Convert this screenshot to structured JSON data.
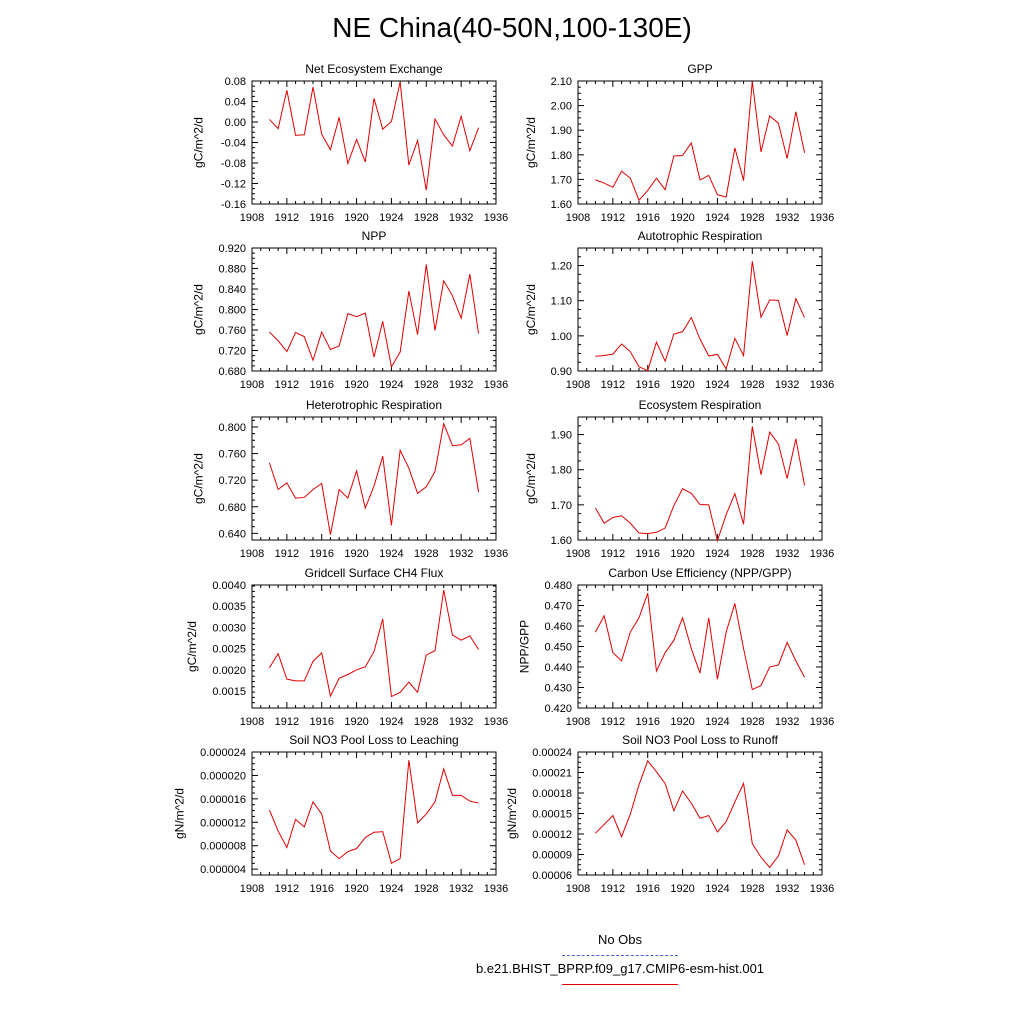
{
  "title": "NE China(40-50N,100-130E)",
  "legend": {
    "obs_label": "No Obs",
    "obs_color": "#4a5ed8",
    "model_label": "b.e21.BHIST_BPRP.f09_g17.CMIP6-esm-hist.001",
    "model_color": "#e00000"
  },
  "chart_data": [
    {
      "type": "line",
      "title": "Net Ecosystem Exchange",
      "ylabel": "gC/m^2/d",
      "xlim": [
        1908,
        1936
      ],
      "xticks": [
        1908,
        1912,
        1916,
        1920,
        1924,
        1928,
        1932,
        1936
      ],
      "ylim": [
        -0.16,
        0.08
      ],
      "yticks": [
        "-0.16",
        "-0.12",
        "-0.08",
        "-0.04",
        "0.00",
        "0.04",
        "0.08"
      ],
      "series": [
        {
          "x": [
            1910,
            1911,
            1912,
            1913,
            1914,
            1915,
            1916,
            1917,
            1918,
            1919,
            1920,
            1921,
            1922,
            1923,
            1924,
            1925,
            1926,
            1927,
            1928,
            1929,
            1930,
            1931,
            1932,
            1933,
            1934
          ],
          "values": [
            0.005,
            -0.013,
            0.062,
            -0.026,
            -0.025,
            0.068,
            -0.024,
            -0.054,
            0.009,
            -0.081,
            -0.034,
            -0.078,
            0.046,
            -0.014,
            0.001,
            0.078,
            -0.084,
            -0.036,
            -0.133,
            0.006,
            -0.025,
            -0.047,
            0.011,
            -0.056,
            -0.011
          ]
        }
      ]
    },
    {
      "type": "line",
      "title": "GPP",
      "ylabel": "gC/m^2/d",
      "xlim": [
        1908,
        1936
      ],
      "xticks": [
        1908,
        1912,
        1916,
        1920,
        1924,
        1928,
        1932,
        1936
      ],
      "ylim": [
        1.6,
        2.1
      ],
      "yticks": [
        "1.60",
        "1.70",
        "1.80",
        "1.90",
        "2.00",
        "2.10"
      ],
      "series": [
        {
          "x": [
            1910,
            1911,
            1912,
            1913,
            1914,
            1915,
            1916,
            1917,
            1918,
            1919,
            1920,
            1921,
            1922,
            1923,
            1924,
            1925,
            1926,
            1927,
            1928,
            1929,
            1930,
            1931,
            1932,
            1933,
            1934
          ],
          "values": [
            1.698,
            1.685,
            1.668,
            1.733,
            1.705,
            1.615,
            1.655,
            1.705,
            1.658,
            1.795,
            1.797,
            1.848,
            1.698,
            1.716,
            1.638,
            1.628,
            1.828,
            1.695,
            2.098,
            1.812,
            1.958,
            1.928,
            1.785,
            1.975,
            1.808
          ]
        }
      ]
    },
    {
      "type": "line",
      "title": "NPP",
      "ylabel": "gC/m^2/d",
      "xlim": [
        1908,
        1936
      ],
      "xticks": [
        1908,
        1912,
        1916,
        1920,
        1924,
        1928,
        1932,
        1936
      ],
      "ylim": [
        0.68,
        0.92
      ],
      "yticks": [
        "0.680",
        "0.720",
        "0.760",
        "0.800",
        "0.840",
        "0.880",
        "0.920"
      ],
      "series": [
        {
          "x": [
            1910,
            1911,
            1912,
            1913,
            1914,
            1915,
            1916,
            1917,
            1918,
            1919,
            1920,
            1921,
            1922,
            1923,
            1924,
            1925,
            1926,
            1927,
            1928,
            1929,
            1930,
            1931,
            1932,
            1933,
            1934
          ],
          "values": [
            0.756,
            0.739,
            0.718,
            0.755,
            0.747,
            0.701,
            0.756,
            0.722,
            0.729,
            0.792,
            0.786,
            0.793,
            0.707,
            0.777,
            0.688,
            0.717,
            0.836,
            0.751,
            0.888,
            0.759,
            0.856,
            0.827,
            0.783,
            0.869,
            0.753
          ]
        }
      ]
    },
    {
      "type": "line",
      "title": "Autotrophic Respiration",
      "ylabel": "gC/m^2/d",
      "xlim": [
        1908,
        1936
      ],
      "xticks": [
        1908,
        1912,
        1916,
        1920,
        1924,
        1928,
        1932,
        1936
      ],
      "ylim": [
        0.9,
        1.25
      ],
      "yticks": [
        "0.90",
        "1.00",
        "1.10",
        "1.20"
      ],
      "series": [
        {
          "x": [
            1910,
            1911,
            1912,
            1913,
            1914,
            1915,
            1916,
            1917,
            1918,
            1919,
            1920,
            1921,
            1922,
            1923,
            1924,
            1925,
            1926,
            1927,
            1928,
            1929,
            1930,
            1931,
            1932,
            1933,
            1934
          ],
          "values": [
            0.942,
            0.944,
            0.948,
            0.977,
            0.955,
            0.912,
            0.901,
            0.982,
            0.928,
            1.005,
            1.012,
            1.052,
            0.991,
            0.943,
            0.947,
            0.906,
            0.993,
            0.944,
            1.212,
            1.053,
            1.102,
            1.101,
            1.001,
            1.106,
            1.052
          ]
        }
      ]
    },
    {
      "type": "line",
      "title": "Heterotrophic Respiration",
      "ylabel": "gC/m^2/d",
      "xlim": [
        1908,
        1936
      ],
      "xticks": [
        1908,
        1912,
        1916,
        1920,
        1924,
        1928,
        1932,
        1936
      ],
      "ylim": [
        0.63,
        0.815
      ],
      "yticks": [
        "0.640",
        "0.680",
        "0.720",
        "0.760",
        "0.800"
      ],
      "series": [
        {
          "x": [
            1910,
            1911,
            1912,
            1913,
            1914,
            1915,
            1916,
            1917,
            1918,
            1919,
            1920,
            1921,
            1922,
            1923,
            1924,
            1925,
            1926,
            1927,
            1928,
            1929,
            1930,
            1931,
            1932,
            1933,
            1934
          ],
          "values": [
            0.746,
            0.706,
            0.716,
            0.693,
            0.694,
            0.706,
            0.715,
            0.638,
            0.706,
            0.693,
            0.734,
            0.678,
            0.711,
            0.756,
            0.652,
            0.765,
            0.738,
            0.7,
            0.71,
            0.733,
            0.805,
            0.772,
            0.773,
            0.783,
            0.702
          ]
        }
      ]
    },
    {
      "type": "line",
      "title": "Ecosystem Respiration",
      "ylabel": "gC/m^2/d",
      "xlim": [
        1908,
        1936
      ],
      "xticks": [
        1908,
        1912,
        1916,
        1920,
        1924,
        1928,
        1932,
        1936
      ],
      "ylim": [
        1.6,
        1.95
      ],
      "yticks": [
        "1.60",
        "1.70",
        "1.80",
        "1.90"
      ],
      "series": [
        {
          "x": [
            1910,
            1911,
            1912,
            1913,
            1914,
            1915,
            1916,
            1917,
            1918,
            1919,
            1920,
            1921,
            1922,
            1923,
            1924,
            1925,
            1926,
            1927,
            1928,
            1929,
            1930,
            1931,
            1932,
            1933,
            1934
          ],
          "values": [
            1.691,
            1.648,
            1.664,
            1.669,
            1.648,
            1.62,
            1.618,
            1.622,
            1.634,
            1.698,
            1.746,
            1.733,
            1.701,
            1.7,
            1.598,
            1.672,
            1.732,
            1.645,
            1.923,
            1.786,
            1.907,
            1.873,
            1.775,
            1.888,
            1.755
          ]
        }
      ]
    },
    {
      "type": "line",
      "title": "Gridcell Surface CH4 Flux",
      "ylabel": "gC/m^2/d",
      "xlim": [
        1908,
        1936
      ],
      "xticks": [
        1908,
        1912,
        1916,
        1920,
        1924,
        1928,
        1932,
        1936
      ],
      "ylim": [
        0.0011,
        0.004
      ],
      "yticks": [
        "0.0015",
        "0.0020",
        "0.0025",
        "0.0030",
        "0.0035",
        "0.0040"
      ],
      "series": [
        {
          "x": [
            1910,
            1911,
            1912,
            1913,
            1914,
            1915,
            1916,
            1917,
            1918,
            1919,
            1920,
            1921,
            1922,
            1923,
            1924,
            1925,
            1926,
            1927,
            1928,
            1929,
            1930,
            1931,
            1932,
            1933,
            1934
          ],
          "values": [
            0.00205,
            0.00238,
            0.00178,
            0.00174,
            0.00174,
            0.0022,
            0.0024,
            0.00138,
            0.0018,
            0.00189,
            0.002,
            0.00207,
            0.00243,
            0.0032,
            0.00137,
            0.00147,
            0.00171,
            0.00147,
            0.00235,
            0.00245,
            0.00388,
            0.00282,
            0.0027,
            0.0028,
            0.00248
          ]
        }
      ]
    },
    {
      "type": "line",
      "title": "Carbon Use Efficiency (NPP/GPP)",
      "ylabel": "NPP/GPP",
      "xlim": [
        1908,
        1936
      ],
      "xticks": [
        1908,
        1912,
        1916,
        1920,
        1924,
        1928,
        1932,
        1936
      ],
      "ylim": [
        0.42,
        0.48
      ],
      "yticks": [
        "0.420",
        "0.430",
        "0.440",
        "0.450",
        "0.460",
        "0.470",
        "0.480"
      ],
      "series": [
        {
          "x": [
            1910,
            1911,
            1912,
            1913,
            1914,
            1915,
            1916,
            1917,
            1918,
            1919,
            1920,
            1921,
            1922,
            1923,
            1924,
            1925,
            1926,
            1927,
            1928,
            1929,
            1930,
            1931,
            1932,
            1933,
            1934
          ],
          "values": [
            0.457,
            0.465,
            0.447,
            0.443,
            0.457,
            0.464,
            0.476,
            0.438,
            0.447,
            0.453,
            0.464,
            0.449,
            0.437,
            0.464,
            0.434,
            0.457,
            0.471,
            0.449,
            0.429,
            0.431,
            0.44,
            0.441,
            0.452,
            0.443,
            0.435
          ]
        }
      ]
    },
    {
      "type": "line",
      "title": "Soil NO3 Pool Loss to Leaching",
      "ylabel": "gN/m^2/d",
      "xlim": [
        1908,
        1936
      ],
      "xticks": [
        1908,
        1912,
        1916,
        1920,
        1924,
        1928,
        1932,
        1936
      ],
      "ylim": [
        3e-06,
        2.4e-05
      ],
      "yticks": [
        "0.000004",
        "0.000008",
        "0.000012",
        "0.000016",
        "0.000020",
        "0.000024"
      ],
      "series": [
        {
          "x": [
            1910,
            1911,
            1912,
            1913,
            1914,
            1915,
            1916,
            1917,
            1918,
            1919,
            1920,
            1921,
            1922,
            1923,
            1924,
            1925,
            1926,
            1927,
            1928,
            1929,
            1930,
            1931,
            1932,
            1933,
            1934
          ],
          "values": [
            1.41e-05,
            1.05e-05,
            7.7e-06,
            1.25e-05,
            1.12e-05,
            1.55e-05,
            1.34e-05,
            7.1e-06,
            5.8e-06,
            7e-06,
            7.5e-06,
            9.4e-06,
            1.03e-05,
            1.04e-05,
            5e-06,
            5.8e-06,
            2.26e-05,
            1.19e-05,
            1.34e-05,
            1.55e-05,
            2.11e-05,
            1.66e-05,
            1.66e-05,
            1.56e-05,
            1.53e-05
          ]
        }
      ]
    },
    {
      "type": "line",
      "title": "Soil NO3 Pool Loss to Runoff",
      "ylabel": "gN/m^2/d",
      "xlim": [
        1908,
        1936
      ],
      "xticks": [
        1908,
        1912,
        1916,
        1920,
        1924,
        1928,
        1932,
        1936
      ],
      "ylim": [
        6e-05,
        0.00024
      ],
      "yticks": [
        "0.00006",
        "0.00009",
        "0.00012",
        "0.00015",
        "0.00018",
        "0.00021",
        "0.00024"
      ],
      "series": [
        {
          "x": [
            1910,
            1911,
            1912,
            1913,
            1914,
            1915,
            1916,
            1917,
            1918,
            1919,
            1920,
            1921,
            1922,
            1923,
            1924,
            1925,
            1926,
            1927,
            1928,
            1929,
            1930,
            1931,
            1932,
            1933,
            1934
          ],
          "values": [
            0.000121,
            0.000134,
            0.000147,
            0.000116,
            0.000149,
            0.000192,
            0.000227,
            0.000211,
            0.000194,
            0.000154,
            0.000183,
            0.000165,
            0.000143,
            0.000147,
            0.000123,
            0.000138,
            0.000167,
            0.000194,
            0.000106,
            8.6e-05,
            7.1e-05,
            8.8e-05,
            0.000126,
            0.000111,
            7.5e-05
          ]
        }
      ]
    }
  ]
}
